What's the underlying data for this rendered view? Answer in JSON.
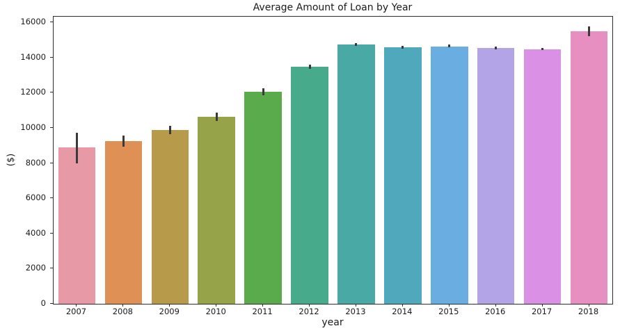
{
  "chart_data": {
    "type": "bar",
    "title": "Average Amount of Loan by Year",
    "xlabel": "year",
    "ylabel": "($)",
    "categories": [
      "2007",
      "2008",
      "2009",
      "2010",
      "2011",
      "2012",
      "2013",
      "2014",
      "2015",
      "2016",
      "2017",
      "2018"
    ],
    "values": [
      8880,
      9240,
      9880,
      10630,
      12050,
      13470,
      14740,
      14570,
      14640,
      14540,
      14480,
      15480
    ],
    "error_low": [
      8000,
      8930,
      9640,
      10390,
      11850,
      13350,
      14660,
      14500,
      14570,
      14470,
      14410,
      15210
    ],
    "error_high": [
      9730,
      9560,
      10110,
      10860,
      12250,
      13590,
      14820,
      14650,
      14730,
      14620,
      14540,
      15760
    ],
    "bar_colors": [
      "#e899a6",
      "#df9055",
      "#b79b4b",
      "#97a349",
      "#5aab4c",
      "#47ab8b",
      "#49a9a5",
      "#4fa8bb",
      "#6aade0",
      "#b2a4e6",
      "#da90e4",
      "#e78fc0"
    ],
    "error_bar_color": "#3a3a3a",
    "axis_color": "#2b2b2b",
    "y_ticks": [
      0,
      2000,
      4000,
      6000,
      8000,
      10000,
      12000,
      14000,
      16000
    ],
    "ylim": [
      0,
      16320
    ],
    "bar_width_fraction": 0.8,
    "grid": false,
    "legend": "none"
  }
}
